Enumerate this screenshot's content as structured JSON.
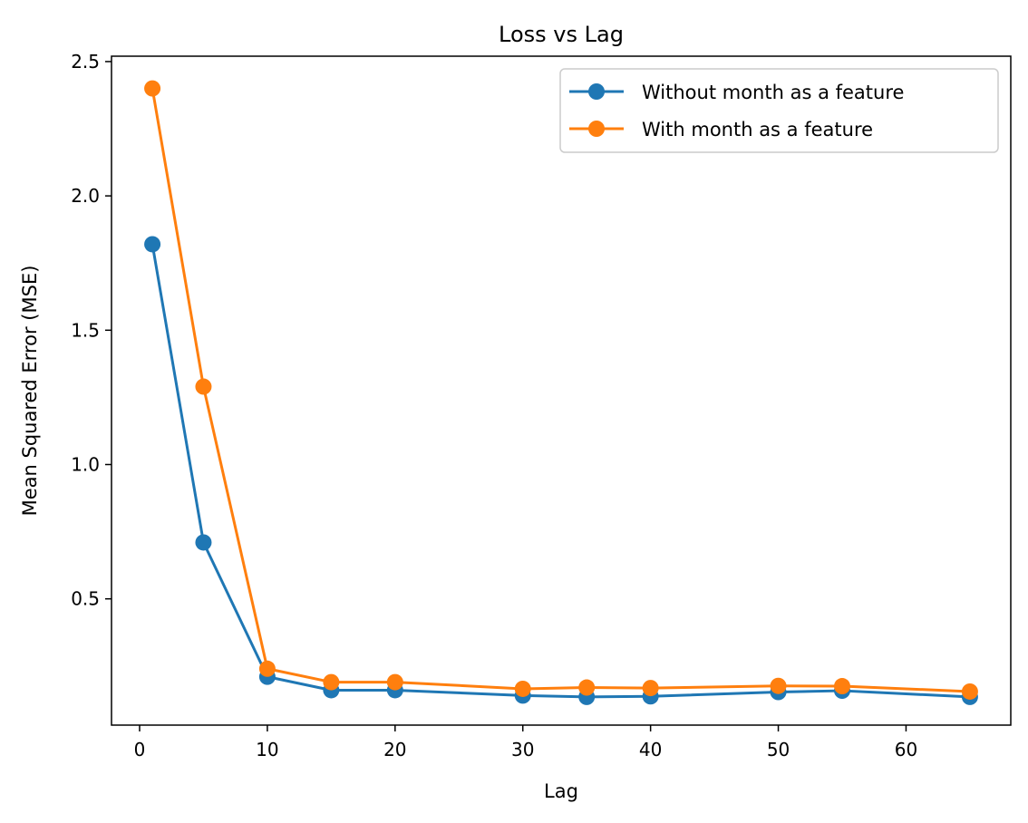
{
  "chart_data": {
    "type": "line",
    "title": "Loss vs Lag",
    "xlabel": "Lag",
    "ylabel": "Mean Squared Error (MSE)",
    "xlim": [
      -2.2,
      68.2
    ],
    "ylim": [
      0.03,
      2.52
    ],
    "xticks": [
      0,
      10,
      20,
      30,
      40,
      50,
      60
    ],
    "yticks": [
      0.5,
      1.0,
      1.5,
      2.0,
      2.5
    ],
    "xtick_labels": [
      "0",
      "10",
      "20",
      "30",
      "40",
      "50",
      "60"
    ],
    "ytick_labels": [
      "0.5",
      "1.0",
      "1.5",
      "2.0",
      "2.5"
    ],
    "grid": false,
    "legend_position": "top-right",
    "x": [
      1,
      5,
      10,
      15,
      20,
      30,
      35,
      40,
      50,
      55,
      65
    ],
    "series": [
      {
        "name": "Without month as a feature",
        "color": "#1f77b4",
        "marker": "circle",
        "values": [
          1.82,
          0.71,
          0.21,
          0.16,
          0.16,
          0.14,
          0.135,
          0.137,
          0.153,
          0.158,
          0.135
        ]
      },
      {
        "name": "With month as a feature",
        "color": "#ff7f0e",
        "marker": "circle",
        "values": [
          2.4,
          1.29,
          0.24,
          0.19,
          0.19,
          0.165,
          0.17,
          0.168,
          0.176,
          0.175,
          0.155
        ]
      }
    ]
  }
}
